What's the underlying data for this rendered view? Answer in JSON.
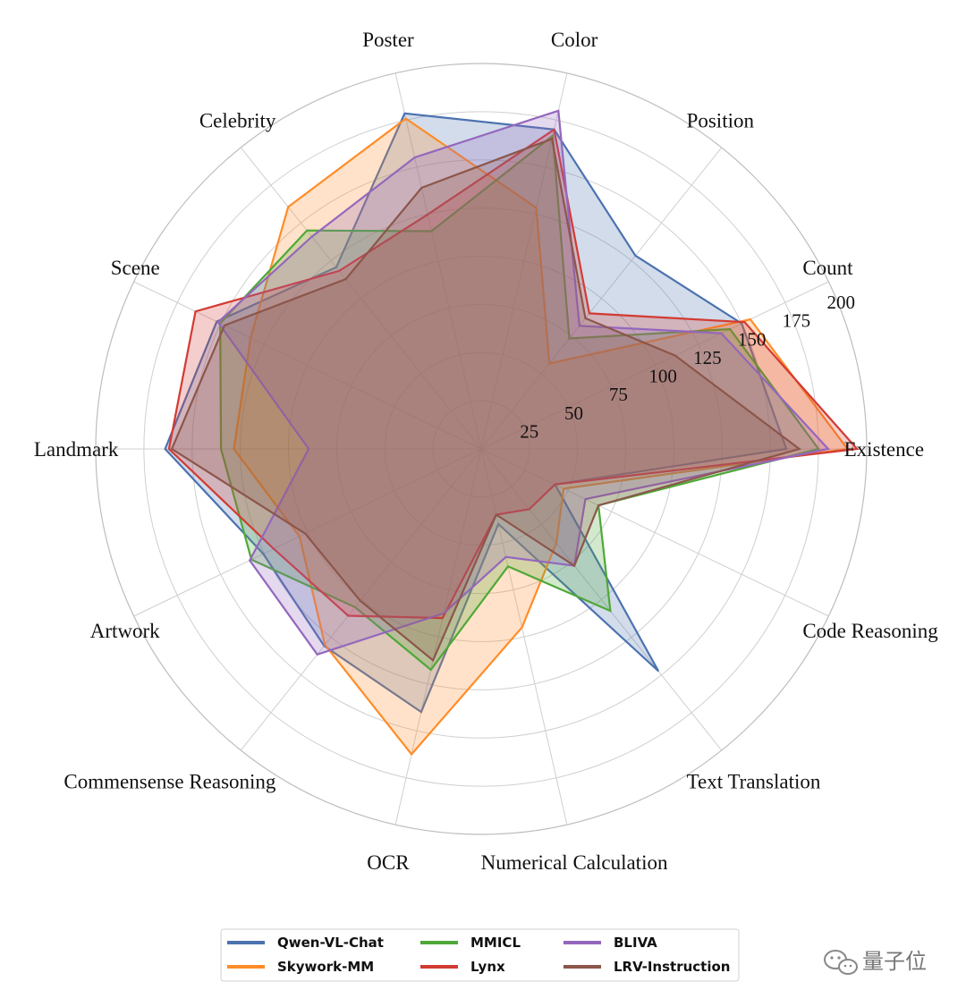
{
  "chart_data": {
    "type": "radar",
    "title": "",
    "categories": [
      "Existence",
      "Count",
      "Position",
      "Color",
      "Poster",
      "Celebrity",
      "Scene",
      "Landmark",
      "Artwork",
      "Commensense Reasoning",
      "OCR",
      "Numerical Calculation",
      "Text Translation",
      "Code Reasoning"
    ],
    "rlim": [
      0,
      200
    ],
    "rticks": [
      25,
      50,
      75,
      100,
      125,
      150,
      175,
      200
    ],
    "rtick_labels": [
      "25",
      "50",
      "75",
      "100",
      "125",
      "150",
      "175",
      "200"
    ],
    "grid": true,
    "legend_position": "bottom-center",
    "series": [
      {
        "name": "Qwen-VL-Chat",
        "color": "#4C72B0",
        "values": [
          158.3,
          150.0,
          128.3,
          170.0,
          178.6,
          120.6,
          152.3,
          164.0,
          125.5,
          130.7,
          140.0,
          40.0,
          147.5,
          42.5
        ]
      },
      {
        "name": "Skywork-MM",
        "color": "#FF8C28",
        "values": [
          190.0,
          155.0,
          56.7,
          128.3,
          175.8,
          160.6,
          132.8,
          128.3,
          104.6,
          130.0,
          162.5,
          95.0,
          62.5,
          47.5
        ]
      },
      {
        "name": "MMICL",
        "color": "#4FA838",
        "values": [
          175.0,
          143.3,
          73.3,
          166.7,
          115.9,
          145.0,
          150.3,
          135.0,
          132.3,
          105.0,
          117.5,
          62.5,
          107.5,
          67.5
        ]
      },
      {
        "name": "Lynx",
        "color": "#D23B33",
        "values": [
          195.0,
          151.7,
          90.0,
          170.0,
          124.8,
          118.2,
          164.5,
          162.0,
          119.5,
          110.7,
          90.0,
          35.0,
          40.0,
          42.5
        ]
      },
      {
        "name": "BLIVA",
        "color": "#9467BD",
        "values": [
          180.0,
          138.3,
          81.7,
          180.0,
          155.1,
          140.9,
          151.5,
          89.5,
          133.3,
          136.4,
          87.5,
          57.5,
          77.5,
          60.0
        ]
      },
      {
        "name": "LRV-Instruction",
        "color": "#8C564B",
        "values": [
          165.0,
          111.7,
          86.7,
          165.0,
          139.0,
          112.7,
          147.8,
          160.5,
          101.3,
          100.7,
          112.5,
          35.0,
          77.5,
          67.5
        ]
      }
    ]
  },
  "watermark": {
    "text": "量子位"
  }
}
